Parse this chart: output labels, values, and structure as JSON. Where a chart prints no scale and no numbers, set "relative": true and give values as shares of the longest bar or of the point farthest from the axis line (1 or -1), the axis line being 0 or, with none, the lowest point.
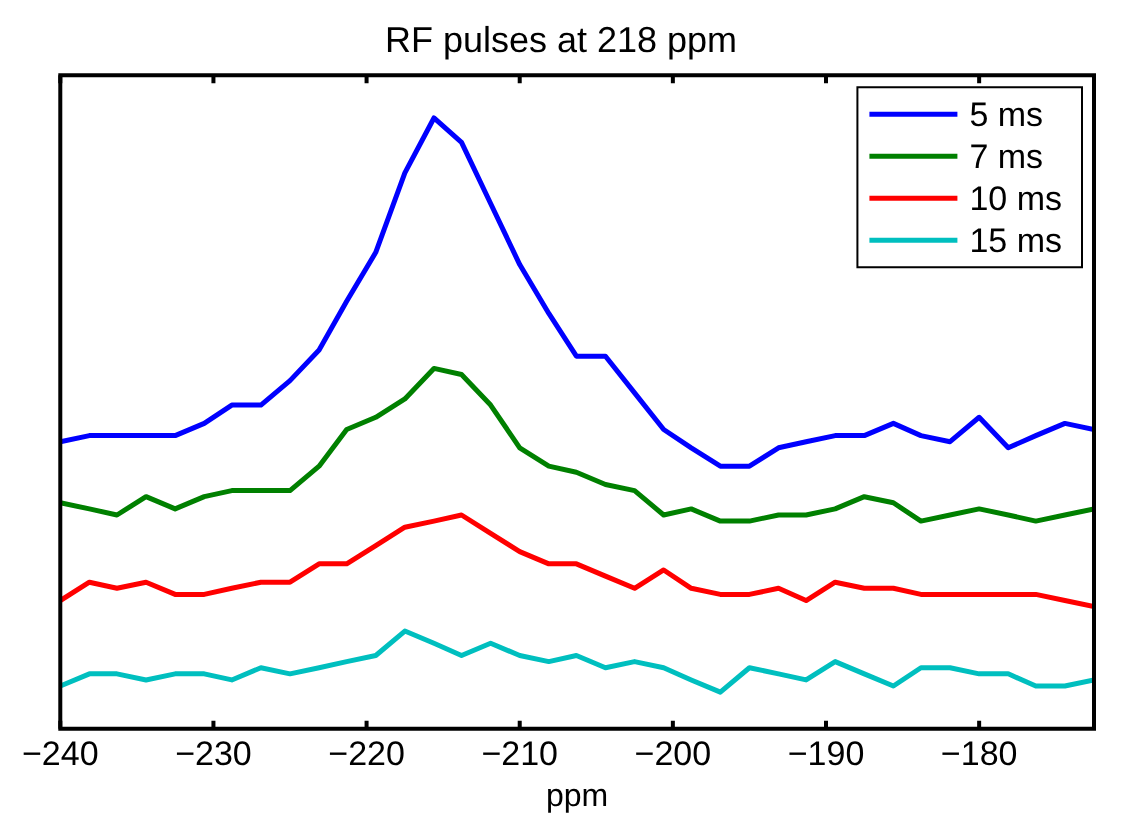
{
  "chart_data": {
    "type": "line",
    "title": "RF pulses at 218 ppm",
    "xlabel": "ppm",
    "relative": true,
    "legend": "top right",
    "grid": false,
    "marker": "none",
    "line_style": "solid",
    "x": [
      -240,
      -238.1,
      -236.3,
      -234.4,
      -232.5,
      -230.6,
      -228.8,
      -226.9,
      -225,
      -223.1,
      -221.3,
      -219.4,
      -217.5,
      -215.6,
      -213.8,
      -211.9,
      -210,
      -208.1,
      -206.3,
      -204.4,
      -202.5,
      -200.6,
      -198.8,
      -196.9,
      -195,
      -193.1,
      -191.3,
      -189.4,
      -187.5,
      -185.6,
      -183.8,
      -181.9,
      -180,
      -178.1,
      -176.3,
      -174.4,
      -172.5
    ],
    "xlim": [
      -240,
      -172.5
    ],
    "xticks": [
      -240,
      -230,
      -220,
      -210,
      -200,
      -190,
      -180
    ],
    "series": [
      {
        "name": "5 ms",
        "color": "#0000ff",
        "values": [
          0.47,
          0.48,
          0.48,
          0.48,
          0.48,
          0.5,
          0.53,
          0.53,
          0.57,
          0.62,
          0.7,
          0.78,
          0.91,
          1,
          0.96,
          0.86,
          0.76,
          0.68,
          0.61,
          0.61,
          0.55,
          0.49,
          0.46,
          0.43,
          0.43,
          0.46,
          0.47,
          0.48,
          0.48,
          0.5,
          0.48,
          0.47,
          0.51,
          0.46,
          0.48,
          0.5,
          0.49
        ]
      },
      {
        "name": "7 ms",
        "color": "#008000",
        "values": [
          0.37,
          0.36,
          0.35,
          0.38,
          0.36,
          0.38,
          0.39,
          0.39,
          0.39,
          0.43,
          0.49,
          0.51,
          0.54,
          0.59,
          0.58,
          0.53,
          0.46,
          0.43,
          0.42,
          0.4,
          0.39,
          0.35,
          0.36,
          0.34,
          0.34,
          0.35,
          0.35,
          0.36,
          0.38,
          0.37,
          0.34,
          0.35,
          0.36,
          0.35,
          0.34,
          0.35,
          0.36
        ]
      },
      {
        "name": "10 ms",
        "color": "#ff0000",
        "values": [
          0.21,
          0.24,
          0.23,
          0.24,
          0.22,
          0.22,
          0.23,
          0.24,
          0.24,
          0.27,
          0.27,
          0.3,
          0.33,
          0.34,
          0.35,
          0.32,
          0.29,
          0.27,
          0.27,
          0.25,
          0.23,
          0.26,
          0.23,
          0.22,
          0.22,
          0.23,
          0.21,
          0.24,
          0.23,
          0.23,
          0.22,
          0.22,
          0.22,
          0.22,
          0.22,
          0.21,
          0.2
        ]
      },
      {
        "name": "15 ms",
        "color": "#00bfbf",
        "values": [
          0.07,
          0.09,
          0.09,
          0.08,
          0.09,
          0.09,
          0.08,
          0.1,
          0.09,
          0.1,
          0.11,
          0.12,
          0.16,
          0.14,
          0.12,
          0.14,
          0.12,
          0.11,
          0.12,
          0.1,
          0.11,
          0.1,
          0.08,
          0.06,
          0.1,
          0.09,
          0.08,
          0.11,
          0.09,
          0.07,
          0.1,
          0.1,
          0.09,
          0.09,
          0.07,
          0.07,
          0.08
        ]
      }
    ]
  }
}
